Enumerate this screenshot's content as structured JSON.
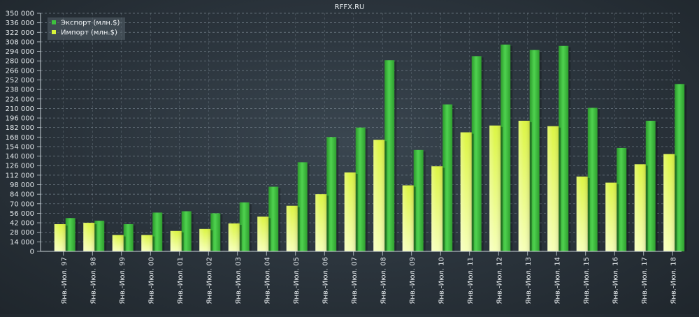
{
  "chart_data": {
    "type": "bar",
    "title": "RFFX.RU",
    "xlabel": "",
    "ylabel": "",
    "ylim": [
      0,
      350000
    ],
    "yticks": [
      0,
      14000,
      28000,
      42000,
      56000,
      70000,
      84000,
      98000,
      112000,
      126000,
      140000,
      154000,
      168000,
      182000,
      196000,
      210000,
      224000,
      238000,
      252000,
      266000,
      280000,
      294000,
      308000,
      322000,
      336000,
      350000
    ],
    "ytick_labels": [
      "0",
      "14 000",
      "28 000",
      "42 000",
      "56 000",
      "70 000",
      "84 000",
      "98 000",
      "112 000",
      "126 000",
      "140 000",
      "154 000",
      "168 000",
      "182 000",
      "196 000",
      "210 000",
      "224 000",
      "238 000",
      "252 000",
      "266 000",
      "280 000",
      "294 000",
      "308 000",
      "322 000",
      "336 000",
      "350 000"
    ],
    "grid": true,
    "legend_position": "top-left",
    "categories": [
      "Янв.-Июл. 97",
      "Янв.-Июл. 98",
      "Янв.-Июл. 99",
      "Янв.-Июл. 00",
      "Янв.-Июл. 01",
      "Янв.-Июл. 02",
      "Янв.-Июл. 03",
      "Янв.-Июл. 04",
      "Янв.-Июл. 05",
      "Янв.-Июл. 06",
      "Янв.-Июл. 07",
      "Янв.-Июл. 08",
      "Янв.-Июл. 09",
      "Янв.-Июл. 10",
      "Янв.-Июл. 11",
      "Янв.-Июл. 12",
      "Янв.-Июл. 13",
      "Янв.-Июл. 14",
      "Янв.-Июл. 15",
      "Янв.-Июл. 16",
      "Янв.-Июл. 17",
      "Янв.-Июл. 18"
    ],
    "series": [
      {
        "name": "Экспорт (млн.$)",
        "color": "#3ec23e",
        "values": [
          49000,
          45000,
          40000,
          57000,
          59000,
          56000,
          72000,
          95000,
          131000,
          168000,
          182000,
          281000,
          149000,
          216000,
          287000,
          304000,
          296000,
          302000,
          211000,
          152000,
          192000,
          246000
        ]
      },
      {
        "name": "Импорт (млн.$)",
        "color": "#d8f53a",
        "values": [
          40000,
          42000,
          24000,
          24000,
          30000,
          33000,
          41000,
          51000,
          67000,
          84000,
          116000,
          164000,
          97000,
          125000,
          175000,
          185000,
          192000,
          184000,
          110000,
          101000,
          128000,
          143000
        ]
      }
    ]
  }
}
